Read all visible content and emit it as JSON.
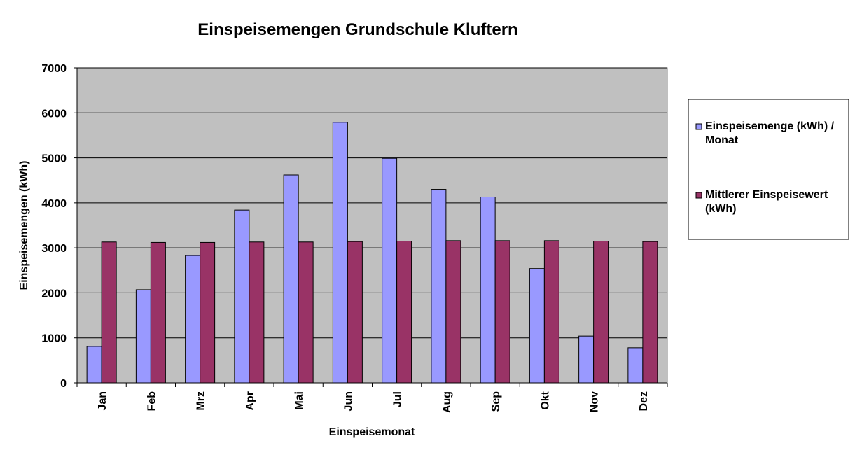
{
  "chart_data": {
    "type": "bar",
    "title": "Einspeisemengen Grundschule Kluftern",
    "xlabel": "Einspeisemonat",
    "ylabel": "Einspeisemengen (kWh)",
    "ylim": [
      0,
      7000
    ],
    "yticks": [
      0,
      1000,
      2000,
      3000,
      4000,
      5000,
      6000,
      7000
    ],
    "grid": true,
    "legend_position": "right",
    "categories": [
      "Jan",
      "Feb",
      "Mrz",
      "Apr",
      "Mai",
      "Jun",
      "Jul",
      "Aug",
      "Sep",
      "Okt",
      "Nov",
      "Dez"
    ],
    "series": [
      {
        "name": "Einspeisemenge (kWh) / Monat",
        "legend_lines": [
          "Einspeisemenge (kWh) /",
          "Monat"
        ],
        "color": "#9999FF",
        "values": [
          810,
          2070,
          2830,
          3840,
          4620,
          5790,
          4990,
          4300,
          4130,
          2540,
          1040,
          780
        ]
      },
      {
        "name": "Mittlerer Einspeisewert (kWh)",
        "legend_lines": [
          "Mittlerer Einspeisewert",
          "(kWh)"
        ],
        "color": "#993366",
        "values": [
          3130,
          3120,
          3120,
          3130,
          3130,
          3140,
          3150,
          3160,
          3160,
          3160,
          3150,
          3140
        ]
      }
    ],
    "colors": {
      "plot_background": "#C0C0C0",
      "gridline": "#000000"
    }
  }
}
